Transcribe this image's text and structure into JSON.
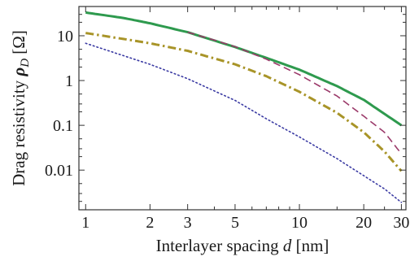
{
  "chart_data": {
    "type": "line",
    "xlabel": {
      "prefix": "Interlayer spacing ",
      "symbol": "d",
      "suffix": " [nm]"
    },
    "ylabel": {
      "prefix": "Drag resistivity ",
      "symbol": "ρ",
      "subscript": "D",
      "suffix": " [Ω]"
    },
    "x_scale": "log",
    "y_scale": "log",
    "xlim": [
      0.93,
      31.5
    ],
    "ylim": [
      0.0013,
      45
    ],
    "x_ticks": [
      {
        "value": 1,
        "label": "1"
      },
      {
        "value": 2,
        "label": "2"
      },
      {
        "value": 3,
        "label": "3"
      },
      {
        "value": 5,
        "label": "5"
      },
      {
        "value": 10,
        "label": "10"
      },
      {
        "value": 20,
        "label": "20"
      },
      {
        "value": 30,
        "label": "30"
      }
    ],
    "x_minor_ticks": [
      4,
      6,
      7,
      8,
      9,
      15,
      25
    ],
    "y_ticks": [
      {
        "value": 10,
        "label": "10"
      },
      {
        "value": 1,
        "label": "1"
      },
      {
        "value": 0.1,
        "label": "0.1"
      },
      {
        "value": 0.01,
        "label": "0.01"
      }
    ],
    "y_minor_ticks": [
      0.002,
      0.003,
      0.005,
      0.02,
      0.03,
      0.05,
      0.2,
      0.3,
      0.5,
      2,
      3,
      5,
      20,
      30
    ],
    "grid": false,
    "series": [
      {
        "style": "solid",
        "color": "#2e9a4e",
        "x": [
          1,
          1.5,
          2,
          3,
          5,
          7,
          10,
          15,
          20,
          30
        ],
        "y": [
          33,
          25,
          19,
          12,
          5.6,
          3.2,
          1.75,
          0.75,
          0.37,
          0.1
        ]
      },
      {
        "style": "dashed",
        "color": "#9b3a6a",
        "x": [
          3,
          4,
          5,
          7,
          10,
          15,
          20,
          25,
          30
        ],
        "y": [
          12,
          8,
          5.7,
          3.0,
          1.35,
          0.45,
          0.16,
          0.07,
          0.023
        ]
      },
      {
        "style": "dashdot",
        "color": "#a89428",
        "x": [
          1,
          1.5,
          2,
          3,
          5,
          7,
          10,
          15,
          20,
          25,
          30
        ],
        "y": [
          11.5,
          8.5,
          6.8,
          4.6,
          2.3,
          1.25,
          0.56,
          0.19,
          0.07,
          0.026,
          0.0095
        ]
      },
      {
        "style": "dotted",
        "color": "#3b3ba3",
        "x": [
          1,
          1.5,
          2,
          3,
          5,
          7,
          10,
          15,
          20,
          25,
          30
        ],
        "y": [
          6.8,
          3.6,
          2.3,
          1.1,
          0.36,
          0.14,
          0.055,
          0.018,
          0.0075,
          0.0038,
          0.0019
        ]
      }
    ]
  }
}
